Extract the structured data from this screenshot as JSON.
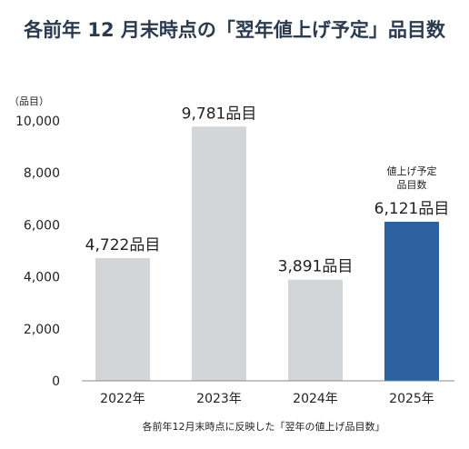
{
  "chart_data": {
    "type": "bar",
    "title": "各前年 12 月末時点の「翌年値上げ予定」品目数",
    "y_unit": "（品目）",
    "categories": [
      "2022年",
      "2023年",
      "2024年",
      "2025年"
    ],
    "values": [
      4722,
      9781,
      3891,
      6121
    ],
    "data_labels": [
      "4,722品目",
      "9,781品目",
      "3,891品目",
      "6,121品目"
    ],
    "highlight_note": [
      "値上げ予定",
      "品目数"
    ],
    "highlight_index": 3,
    "ylim": [
      0,
      10000
    ],
    "yticks": [
      0,
      2000,
      4000,
      6000,
      8000,
      10000
    ],
    "ytick_labels": [
      "0",
      "2,000",
      "4,000",
      "6,000",
      "8,000",
      "10,000"
    ],
    "grid": false,
    "caption": "各前年12月末時点に反映した「翌年の値上げ品目数」",
    "colors": {
      "bar": "#d3d6d9",
      "highlight": "#2d62a0"
    }
  }
}
